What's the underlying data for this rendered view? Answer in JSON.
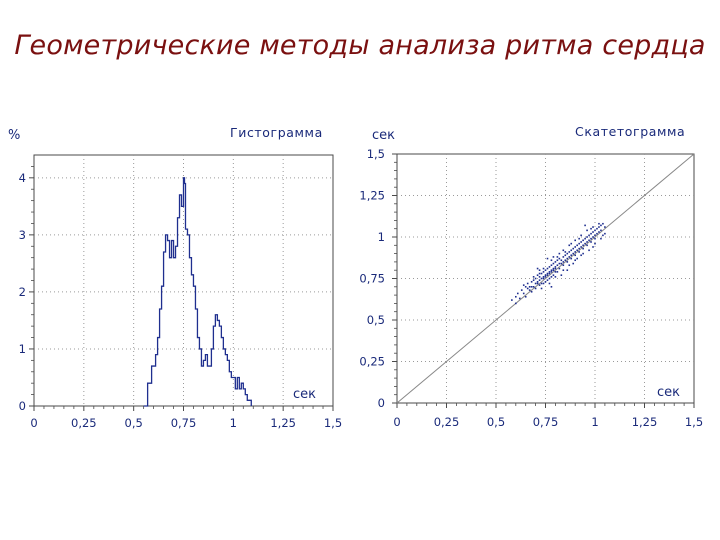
{
  "slide": {
    "title": "Геометрические методы анализа ритма сердца"
  },
  "colors": {
    "title": "#7a1010",
    "text": "#1a2a7a",
    "series": "#1f2f8f",
    "grid": "#9a9a9a",
    "frame": "#4a4a4a",
    "diagonal": "#888888"
  },
  "chart_data": [
    {
      "type": "line",
      "title": "Гистограмма",
      "xlabel": "сек",
      "ylabel": "%",
      "xlim": [
        0,
        1.5
      ],
      "ylim": [
        0,
        4.4
      ],
      "x_ticks": [
        "0",
        "0,25",
        "0,5",
        "0,75",
        "1",
        "1,25",
        "1,5"
      ],
      "y_ticks": [
        "0",
        "1",
        "2",
        "3",
        "4"
      ],
      "grid": true,
      "series": [
        {
          "x": [
            0.55,
            0.57,
            0.59,
            0.61,
            0.62,
            0.63,
            0.64,
            0.65,
            0.66,
            0.67,
            0.68,
            0.69,
            0.7,
            0.71,
            0.72,
            0.73,
            0.74,
            0.75,
            0.755,
            0.76,
            0.77,
            0.78,
            0.79,
            0.8,
            0.81,
            0.82,
            0.83,
            0.84,
            0.85,
            0.86,
            0.87,
            0.88,
            0.89,
            0.9,
            0.91,
            0.92,
            0.93,
            0.94,
            0.95,
            0.96,
            0.97,
            0.98,
            0.99,
            1.0,
            1.01,
            1.02,
            1.03,
            1.04,
            1.05,
            1.06,
            1.07,
            1.08,
            1.09
          ],
          "y": [
            0.0,
            0.4,
            0.7,
            0.9,
            1.2,
            1.7,
            2.1,
            2.7,
            3.0,
            2.9,
            2.6,
            2.9,
            2.6,
            2.8,
            3.3,
            3.7,
            3.5,
            4.0,
            3.9,
            3.1,
            3.0,
            2.6,
            2.3,
            2.1,
            1.7,
            1.2,
            1.0,
            0.7,
            0.8,
            0.9,
            0.7,
            0.7,
            1.0,
            1.4,
            1.6,
            1.5,
            1.4,
            1.2,
            1.0,
            0.9,
            0.8,
            0.6,
            0.5,
            0.5,
            0.3,
            0.5,
            0.3,
            0.4,
            0.3,
            0.2,
            0.1,
            0.1,
            0.0
          ]
        }
      ]
    },
    {
      "type": "scatter",
      "title": "Скатетограмма",
      "xlabel": "сек",
      "ylabel": "сек",
      "xlim": [
        0,
        1.5
      ],
      "ylim": [
        0,
        1.5
      ],
      "x_ticks": [
        "0",
        "0,25",
        "0,5",
        "0,75",
        "1",
        "1,25",
        "1,5"
      ],
      "y_ticks": [
        "0",
        "0,25",
        "0,5",
        "0,75",
        "1",
        "1,25",
        "1,5"
      ],
      "grid": true,
      "reference_line": "y = x",
      "series": [
        {
          "points": [
            [
              0.58,
              0.62
            ],
            [
              0.6,
              0.64
            ],
            [
              0.61,
              0.66
            ],
            [
              0.62,
              0.63
            ],
            [
              0.63,
              0.68
            ],
            [
              0.64,
              0.66
            ],
            [
              0.65,
              0.7
            ],
            [
              0.66,
              0.69
            ],
            [
              0.66,
              0.72
            ],
            [
              0.67,
              0.7
            ],
            [
              0.68,
              0.73
            ],
            [
              0.68,
              0.7
            ],
            [
              0.69,
              0.74
            ],
            [
              0.7,
              0.72
            ],
            [
              0.7,
              0.75
            ],
            [
              0.71,
              0.73
            ],
            [
              0.71,
              0.77
            ],
            [
              0.72,
              0.74
            ],
            [
              0.72,
              0.76
            ],
            [
              0.73,
              0.75
            ],
            [
              0.73,
              0.78
            ],
            [
              0.74,
              0.76
            ],
            [
              0.74,
              0.79
            ],
            [
              0.75,
              0.77
            ],
            [
              0.75,
              0.8
            ],
            [
              0.76,
              0.78
            ],
            [
              0.76,
              0.81
            ],
            [
              0.77,
              0.79
            ],
            [
              0.77,
              0.82
            ],
            [
              0.78,
              0.8
            ],
            [
              0.78,
              0.83
            ],
            [
              0.79,
              0.81
            ],
            [
              0.79,
              0.84
            ],
            [
              0.8,
              0.82
            ],
            [
              0.8,
              0.85
            ],
            [
              0.81,
              0.83
            ],
            [
              0.81,
              0.86
            ],
            [
              0.82,
              0.84
            ],
            [
              0.82,
              0.87
            ],
            [
              0.83,
              0.86
            ],
            [
              0.84,
              0.88
            ],
            [
              0.84,
              0.85
            ],
            [
              0.85,
              0.89
            ],
            [
              0.86,
              0.9
            ],
            [
              0.86,
              0.87
            ],
            [
              0.87,
              0.91
            ],
            [
              0.88,
              0.92
            ],
            [
              0.88,
              0.89
            ],
            [
              0.89,
              0.93
            ],
            [
              0.9,
              0.94
            ],
            [
              0.9,
              0.91
            ],
            [
              0.91,
              0.95
            ],
            [
              0.92,
              0.96
            ],
            [
              0.92,
              0.93
            ],
            [
              0.93,
              0.97
            ],
            [
              0.94,
              0.98
            ],
            [
              0.94,
              0.95
            ],
            [
              0.95,
              0.99
            ],
            [
              0.96,
              1.0
            ],
            [
              0.96,
              0.97
            ],
            [
              0.97,
              1.01
            ],
            [
              0.98,
              1.02
            ],
            [
              0.98,
              0.99
            ],
            [
              0.99,
              1.03
            ],
            [
              1.0,
              1.04
            ],
            [
              1.0,
              1.01
            ],
            [
              1.01,
              1.05
            ],
            [
              1.02,
              1.06
            ],
            [
              1.02,
              1.03
            ],
            [
              1.03,
              1.07
            ],
            [
              1.04,
              1.08
            ],
            [
              0.75,
              0.73
            ],
            [
              0.77,
              0.75
            ],
            [
              0.79,
              0.77
            ],
            [
              0.72,
              0.71
            ],
            [
              0.74,
              0.72
            ],
            [
              0.7,
              0.69
            ],
            [
              0.68,
              0.67
            ],
            [
              0.76,
              0.74
            ],
            [
              0.78,
              0.76
            ],
            [
              0.8,
              0.79
            ],
            [
              0.82,
              0.81
            ],
            [
              0.84,
              0.83
            ],
            [
              0.86,
              0.85
            ],
            [
              0.88,
              0.87
            ],
            [
              0.9,
              0.89
            ],
            [
              0.92,
              0.91
            ],
            [
              0.94,
              0.93
            ],
            [
              0.96,
              0.95
            ],
            [
              0.98,
              0.97
            ],
            [
              1.0,
              0.99
            ],
            [
              0.73,
              0.72
            ],
            [
              0.75,
              0.76
            ],
            [
              0.77,
              0.78
            ],
            [
              0.79,
              0.8
            ],
            [
              0.71,
              0.72
            ],
            [
              0.69,
              0.7
            ],
            [
              0.67,
              0.68
            ],
            [
              0.74,
              0.75
            ],
            [
              0.76,
              0.77
            ],
            [
              0.78,
              0.79
            ],
            [
              0.8,
              0.81
            ],
            [
              0.83,
              0.84
            ],
            [
              0.85,
              0.86
            ],
            [
              0.87,
              0.88
            ],
            [
              0.89,
              0.9
            ],
            [
              0.91,
              0.92
            ],
            [
              0.93,
              0.94
            ],
            [
              0.95,
              0.96
            ],
            [
              0.97,
              0.98
            ],
            [
              0.99,
              1.0
            ],
            [
              1.01,
              1.02
            ],
            [
              1.03,
              1.04
            ],
            [
              1.05,
              1.06
            ],
            [
              0.64,
              0.71
            ],
            [
              0.69,
              0.76
            ],
            [
              0.72,
              0.8
            ],
            [
              0.74,
              0.81
            ],
            [
              0.78,
              0.86
            ],
            [
              0.81,
              0.88
            ],
            [
              0.84,
              0.92
            ],
            [
              0.87,
              0.95
            ],
            [
              0.9,
              0.98
            ],
            [
              0.93,
              1.01
            ],
            [
              0.96,
              1.04
            ],
            [
              0.99,
              1.06
            ],
            [
              1.02,
              1.08
            ],
            [
              0.73,
              0.69
            ],
            [
              0.77,
              0.72
            ],
            [
              0.8,
              0.76
            ],
            [
              0.84,
              0.8
            ],
            [
              0.87,
              0.83
            ],
            [
              0.9,
              0.86
            ],
            [
              0.93,
              0.89
            ],
            [
              0.97,
              0.92
            ],
            [
              1.0,
              0.96
            ],
            [
              1.03,
              0.99
            ],
            [
              0.71,
              0.81
            ],
            [
              0.83,
              0.77
            ],
            [
              0.95,
              1.07
            ],
            [
              0.89,
              0.84
            ],
            [
              0.76,
              0.87
            ],
            [
              0.82,
              0.9
            ],
            [
              0.92,
              0.99
            ],
            [
              0.98,
              1.05
            ],
            [
              1.04,
              1.01
            ],
            [
              0.79,
              0.88
            ],
            [
              0.86,
              0.8
            ],
            [
              0.94,
              0.9
            ],
            [
              0.72,
              0.78
            ],
            [
              0.81,
              0.79
            ],
            [
              0.85,
              0.91
            ],
            [
              0.91,
              0.87
            ],
            [
              0.6,
              0.6
            ],
            [
              0.65,
              0.64
            ],
            [
              0.99,
              0.94
            ],
            [
              1.05,
              1.02
            ],
            [
              0.78,
              0.7
            ],
            [
              0.88,
              0.96
            ]
          ]
        }
      ]
    }
  ]
}
